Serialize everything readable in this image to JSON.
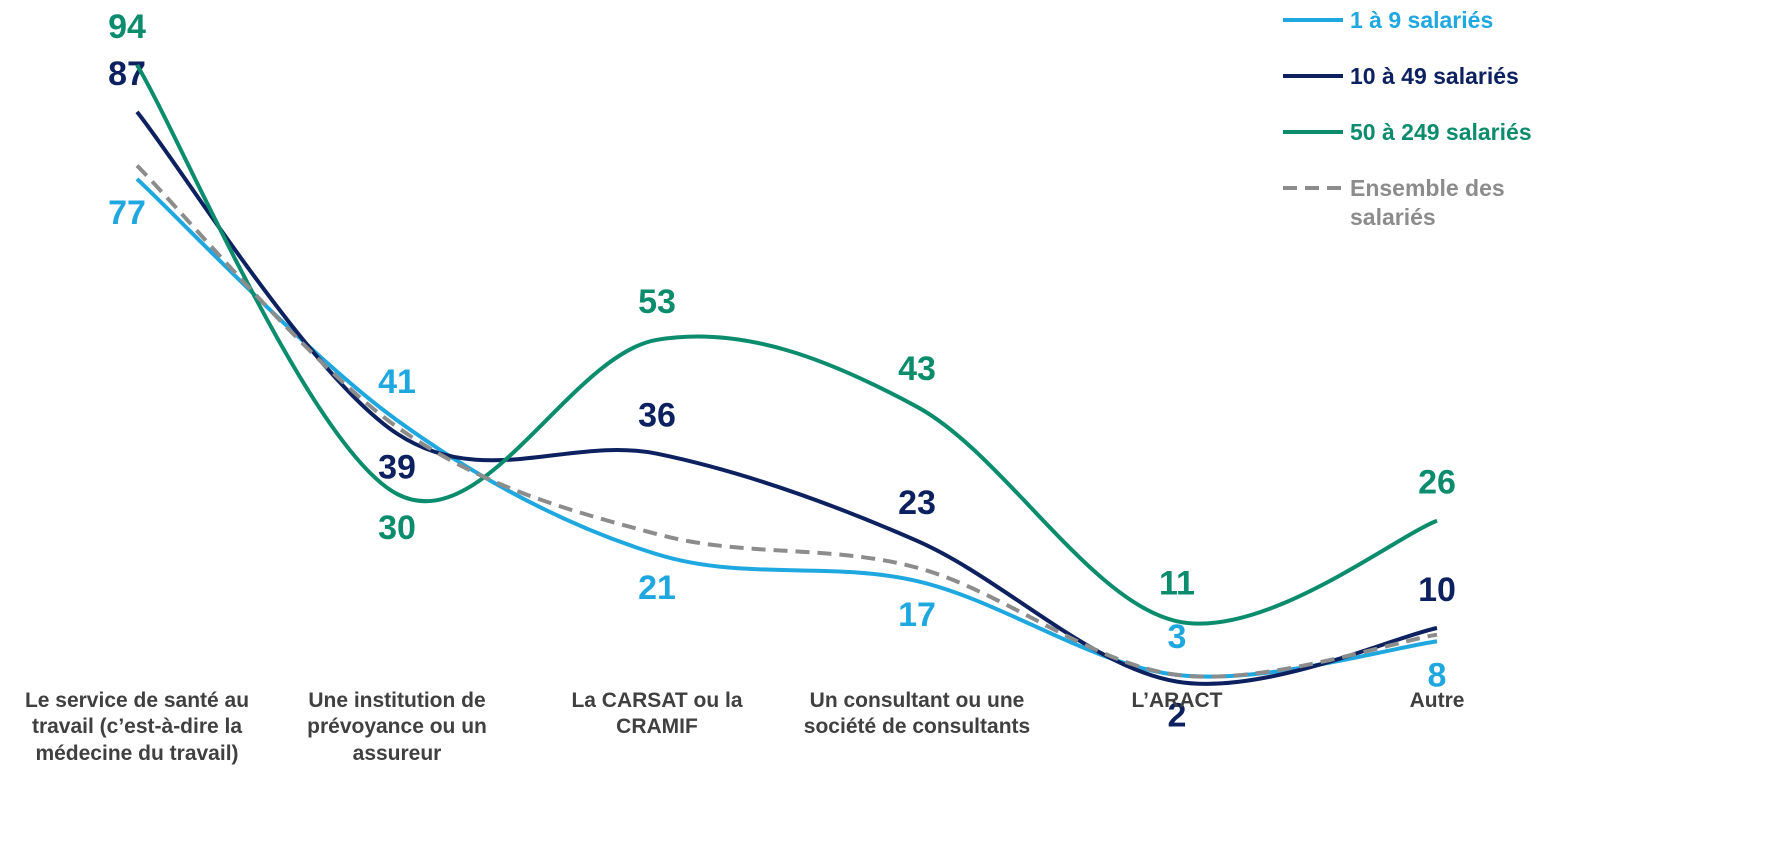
{
  "chart_data": {
    "type": "line",
    "categories": [
      "Le service de santé au travail (c’est-à-dire la médecine du travail)",
      "Une institution de prévoyance ou un assureur",
      "La CARSAT ou la CRAMIF",
      "Un consultant ou une société de consultants",
      "L’ARACT",
      "Autre"
    ],
    "ylim": [
      0,
      100
    ],
    "series": [
      {
        "name": "1 à 9 salariés",
        "color": "#1fa7e0",
        "values": [
          77,
          41,
          21,
          17,
          3,
          8
        ]
      },
      {
        "name": "10 à 49 salariés",
        "color": "#0d2160",
        "values": [
          87,
          39,
          36,
          23,
          2,
          10
        ]
      },
      {
        "name": "50 à 249 salariés",
        "color": "#0b8c6c",
        "values": [
          94,
          30,
          53,
          43,
          11,
          26
        ]
      },
      {
        "name": "Ensemble des salariés",
        "color": "#8c8c8c",
        "dashed": true,
        "show_labels": false,
        "values": [
          79,
          40,
          24,
          19,
          3,
          9
        ]
      }
    ]
  }
}
